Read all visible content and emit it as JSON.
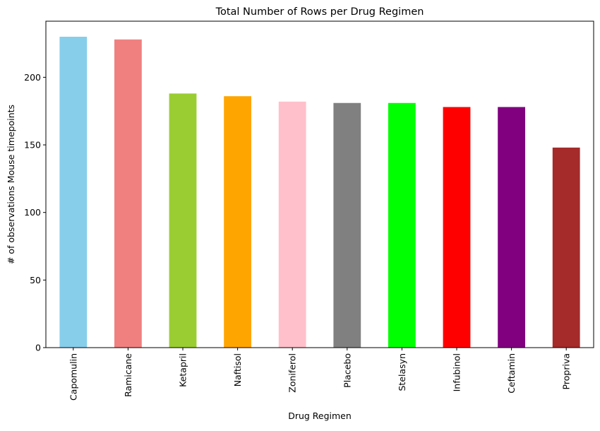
{
  "chart_data": {
    "type": "bar",
    "title": "Total Number of Rows per Drug Regimen",
    "xlabel": "Drug Regimen",
    "ylabel": "# of observations Mouse timepoints",
    "categories": [
      "Capomulin",
      "Ramicane",
      "Ketapril",
      "Naftisol",
      "Zoniferol",
      "Placebo",
      "Stelasyn",
      "Infubinol",
      "Ceftamin",
      "Propriva"
    ],
    "values": [
      230,
      228,
      188,
      186,
      182,
      181,
      181,
      178,
      178,
      148
    ],
    "colors": [
      "#87ceeb",
      "#f08080",
      "#9acd32",
      "#ffa500",
      "#ffc0cb",
      "#808080",
      "#00ff00",
      "#ff0000",
      "#800080",
      "#a52a2a"
    ],
    "ylim": [
      0,
      241.5
    ],
    "yticks": [
      0,
      50,
      100,
      150,
      200
    ],
    "grid": false,
    "legend": "none"
  }
}
